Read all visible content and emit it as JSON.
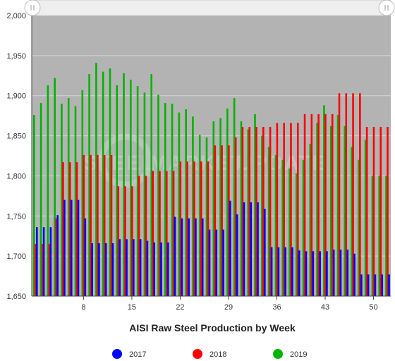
{
  "watermark": {
    "word1": "STEEL",
    "word2": "MARKET",
    "word3": "UPDATE"
  },
  "chart_data": {
    "type": "bar",
    "title": "AISI Raw Steel Production by Week",
    "xlabel": "AISI Raw Steel Production by Week",
    "ylabel": "",
    "ylim": [
      1650,
      2000
    ],
    "yticks": [
      1650,
      1700,
      1750,
      1800,
      1850,
      1900,
      1950,
      2000
    ],
    "y_tick_labels": [
      "1,650",
      "1,700",
      "1,750",
      "1,800",
      "1,850",
      "1,900",
      "1,950",
      "2,000"
    ],
    "xlim": [
      1,
      52
    ],
    "xticks": [
      8,
      15,
      22,
      29,
      36,
      43,
      50
    ],
    "x_tick_labels": [
      "8",
      "15",
      "22",
      "29",
      "36",
      "43",
      "50"
    ],
    "grid": true,
    "legend": "bottom",
    "weeks": [
      1,
      2,
      3,
      4,
      5,
      6,
      7,
      8,
      9,
      10,
      11,
      12,
      13,
      14,
      15,
      16,
      17,
      18,
      19,
      20,
      21,
      22,
      23,
      24,
      25,
      26,
      27,
      28,
      29,
      30,
      31,
      32,
      33,
      34,
      35,
      36,
      37,
      38,
      39,
      40,
      41,
      42,
      43,
      44,
      45,
      46,
      47,
      48,
      49,
      50,
      51,
      52
    ],
    "series": [
      {
        "name": "2017",
        "color": "#0000ff",
        "values": [
          1736,
          1736,
          1736,
          1751,
          1770,
          1770,
          1770,
          1747,
          1716,
          1716,
          1716,
          1716,
          1721,
          1721,
          1721,
          1721,
          1719,
          1717,
          1717,
          1717,
          1749,
          1747,
          1747,
          1747,
          1747,
          1733,
          1733,
          1733,
          1769,
          1752,
          1767,
          1767,
          1767,
          1759,
          1711,
          1711,
          1711,
          1711,
          1707,
          1706,
          1706,
          1706,
          1706,
          1708,
          1708,
          1708,
          1703,
          1677,
          1677,
          1677,
          1677,
          1677
        ]
      },
      {
        "name": "2018",
        "color": "#ff0000",
        "values": [
          1715,
          1715,
          1715,
          1747,
          1817,
          1817,
          1817,
          1826,
          1826,
          1826,
          1826,
          1826,
          1787,
          1787,
          1787,
          1800,
          1800,
          1806,
          1806,
          1806,
          1806,
          1818,
          1818,
          1818,
          1818,
          1818,
          1838,
          1838,
          1838,
          1848,
          1861,
          1861,
          1861,
          1861,
          1861,
          1866,
          1866,
          1866,
          1866,
          1877,
          1877,
          1877,
          1877,
          1877,
          1903,
          1903,
          1903,
          1903,
          1861,
          1861,
          1861,
          1861
        ]
      },
      {
        "name": "2019",
        "color": "#00b400",
        "values": [
          1876,
          1891,
          1913,
          1922,
          1890,
          1897,
          1887,
          1907,
          1927,
          1941,
          1930,
          1934,
          1913,
          1928,
          1920,
          1912,
          1904,
          1927,
          1901,
          1891,
          1890,
          1879,
          1883,
          1874,
          1851,
          1848,
          1868,
          1872,
          1884,
          1897,
          1868,
          1858,
          1877,
          1850,
          1836,
          1826,
          1820,
          1809,
          1803,
          1820,
          1840,
          1866,
          1888,
          1862,
          1876,
          1862,
          1836,
          1820,
          1845,
          1800,
          1800,
          1800
        ]
      }
    ]
  }
}
